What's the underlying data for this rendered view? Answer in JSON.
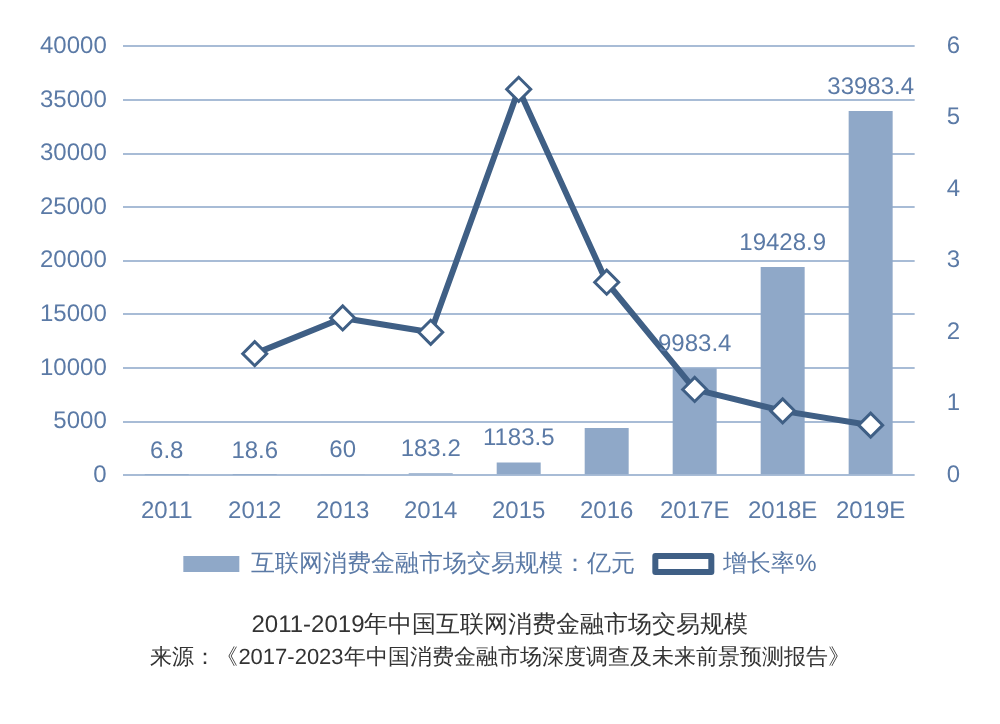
{
  "chart_data": {
    "type": "bar",
    "title": "2011-2019年中国互联网消费金融市场交易规模",
    "annotations": [
      "来源：《2017-2023年中国消费金融市场深度调查及未来前景预测报告》"
    ],
    "categories": [
      "2011",
      "2012",
      "2013",
      "2014",
      "2015",
      "2016",
      "2017E",
      "2018E",
      "2019E"
    ],
    "series": [
      {
        "name": "互联网消费金融市场交易规模：亿元",
        "color": "#8fa8c8",
        "values": [
          6.8,
          18.6,
          60,
          183.2,
          1183.5,
          4400,
          9983.4,
          19428.9,
          33983.4
        ],
        "value_labels": [
          "6.8",
          "18.6",
          "60",
          "183.2",
          "1183.5",
          null,
          "9983.4",
          "19428.9",
          "33983.4"
        ]
      },
      {
        "name": "增长率%",
        "type": "line",
        "axis": "y2",
        "color": "#3f5f85",
        "marker": "diamond",
        "values": [
          null,
          1.7,
          2.2,
          2.0,
          5.4,
          2.7,
          1.2,
          0.9,
          0.7
        ]
      }
    ],
    "ylim": [
      0,
      40000
    ],
    "yticks": [
      0,
      5000,
      10000,
      15000,
      20000,
      25000,
      30000,
      35000,
      40000
    ],
    "y2lim": [
      0,
      6
    ],
    "y2ticks": [
      0,
      1,
      2,
      3,
      4,
      5,
      6
    ],
    "grid": "y",
    "legend": "bottom"
  }
}
